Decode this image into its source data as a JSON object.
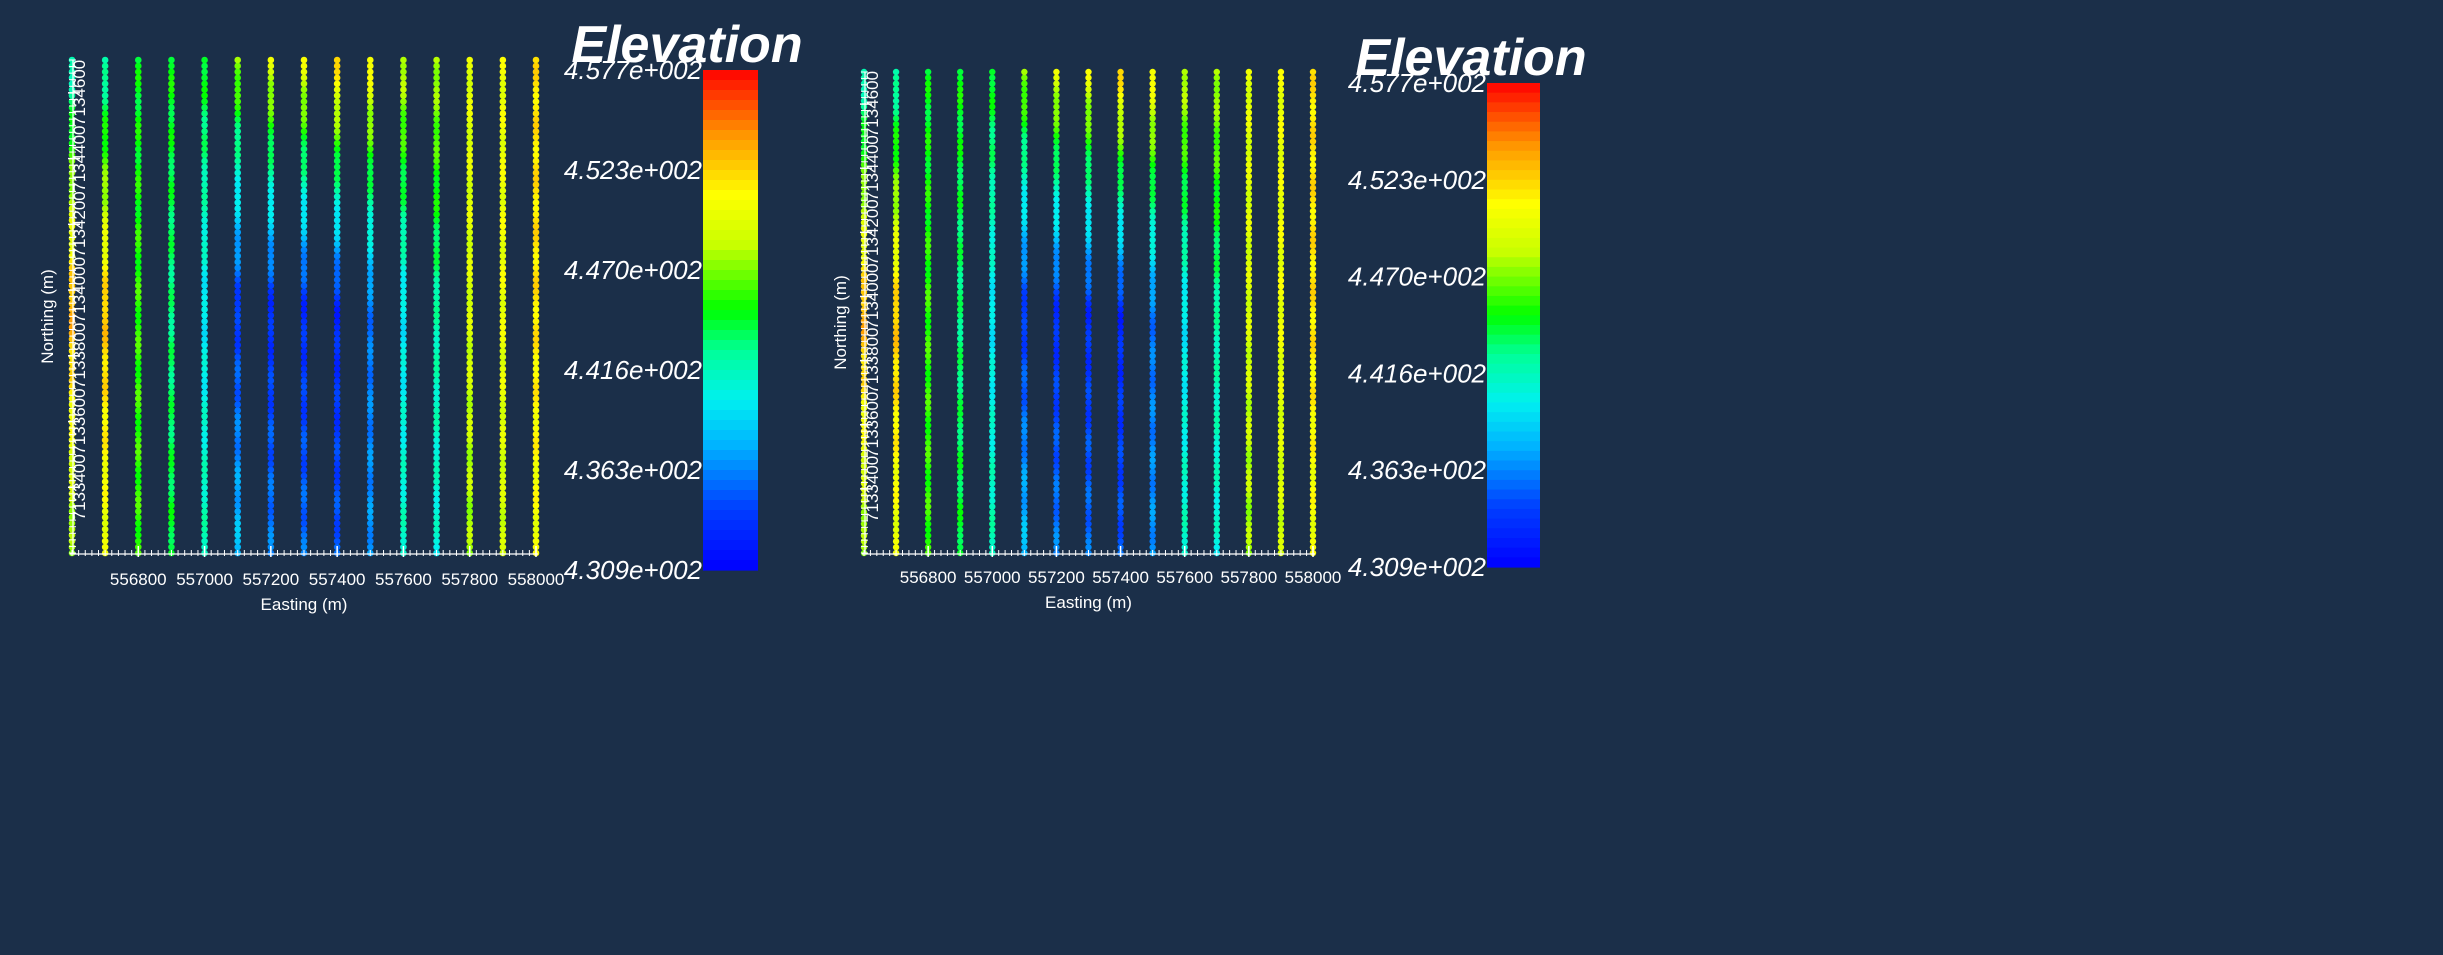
{
  "chart_data": [
    {
      "type": "scatter",
      "xlabel": "Easting (m)",
      "ylabel": "Northing (m)",
      "xticks": [
        "556800",
        "557000",
        "557200",
        "557400",
        "557600",
        "557800",
        "558000"
      ],
      "yticks": [
        "7133400",
        "7133600",
        "7133800",
        "7134000",
        "7134200",
        "7134400",
        "7134600"
      ],
      "xlim": [
        556600,
        558000
      ],
      "ylim": [
        7133200,
        7134700
      ],
      "x_lines": [
        556600,
        556700,
        556800,
        556900,
        557000,
        557100,
        557200,
        557300,
        557400,
        557500,
        557600,
        557700,
        557800,
        557900,
        558000
      ],
      "color_by": "Elevation",
      "colorbar": {
        "title": "Elevation",
        "labels": [
          "4.577e+002",
          "4.523e+002",
          "4.470e+002",
          "4.416e+002",
          "4.363e+002",
          "4.309e+002"
        ],
        "range": [
          430.9,
          457.7
        ]
      }
    },
    {
      "type": "scatter",
      "xlabel": "Easting (m)",
      "ylabel": "Northing (m)",
      "xticks": [
        "556800",
        "557000",
        "557200",
        "557400",
        "557600",
        "557800",
        "558000"
      ],
      "yticks": [
        "7133400",
        "7133600",
        "7133800",
        "7134000",
        "7134200",
        "7134400",
        "7134600"
      ],
      "xlim": [
        556600,
        558000
      ],
      "ylim": [
        7133200,
        7134700
      ],
      "x_lines": [
        556600,
        556700,
        556800,
        556900,
        557000,
        557100,
        557200,
        557300,
        557400,
        557500,
        557600,
        557700,
        557800,
        557900,
        558000
      ],
      "color_by": "Elevation",
      "colorbar": {
        "title": "Elevation",
        "labels": [
          "4.577e+002",
          "4.523e+002",
          "4.470e+002",
          "4.416e+002",
          "4.363e+002",
          "4.309e+002"
        ],
        "range": [
          430.9,
          457.7
        ]
      }
    }
  ]
}
